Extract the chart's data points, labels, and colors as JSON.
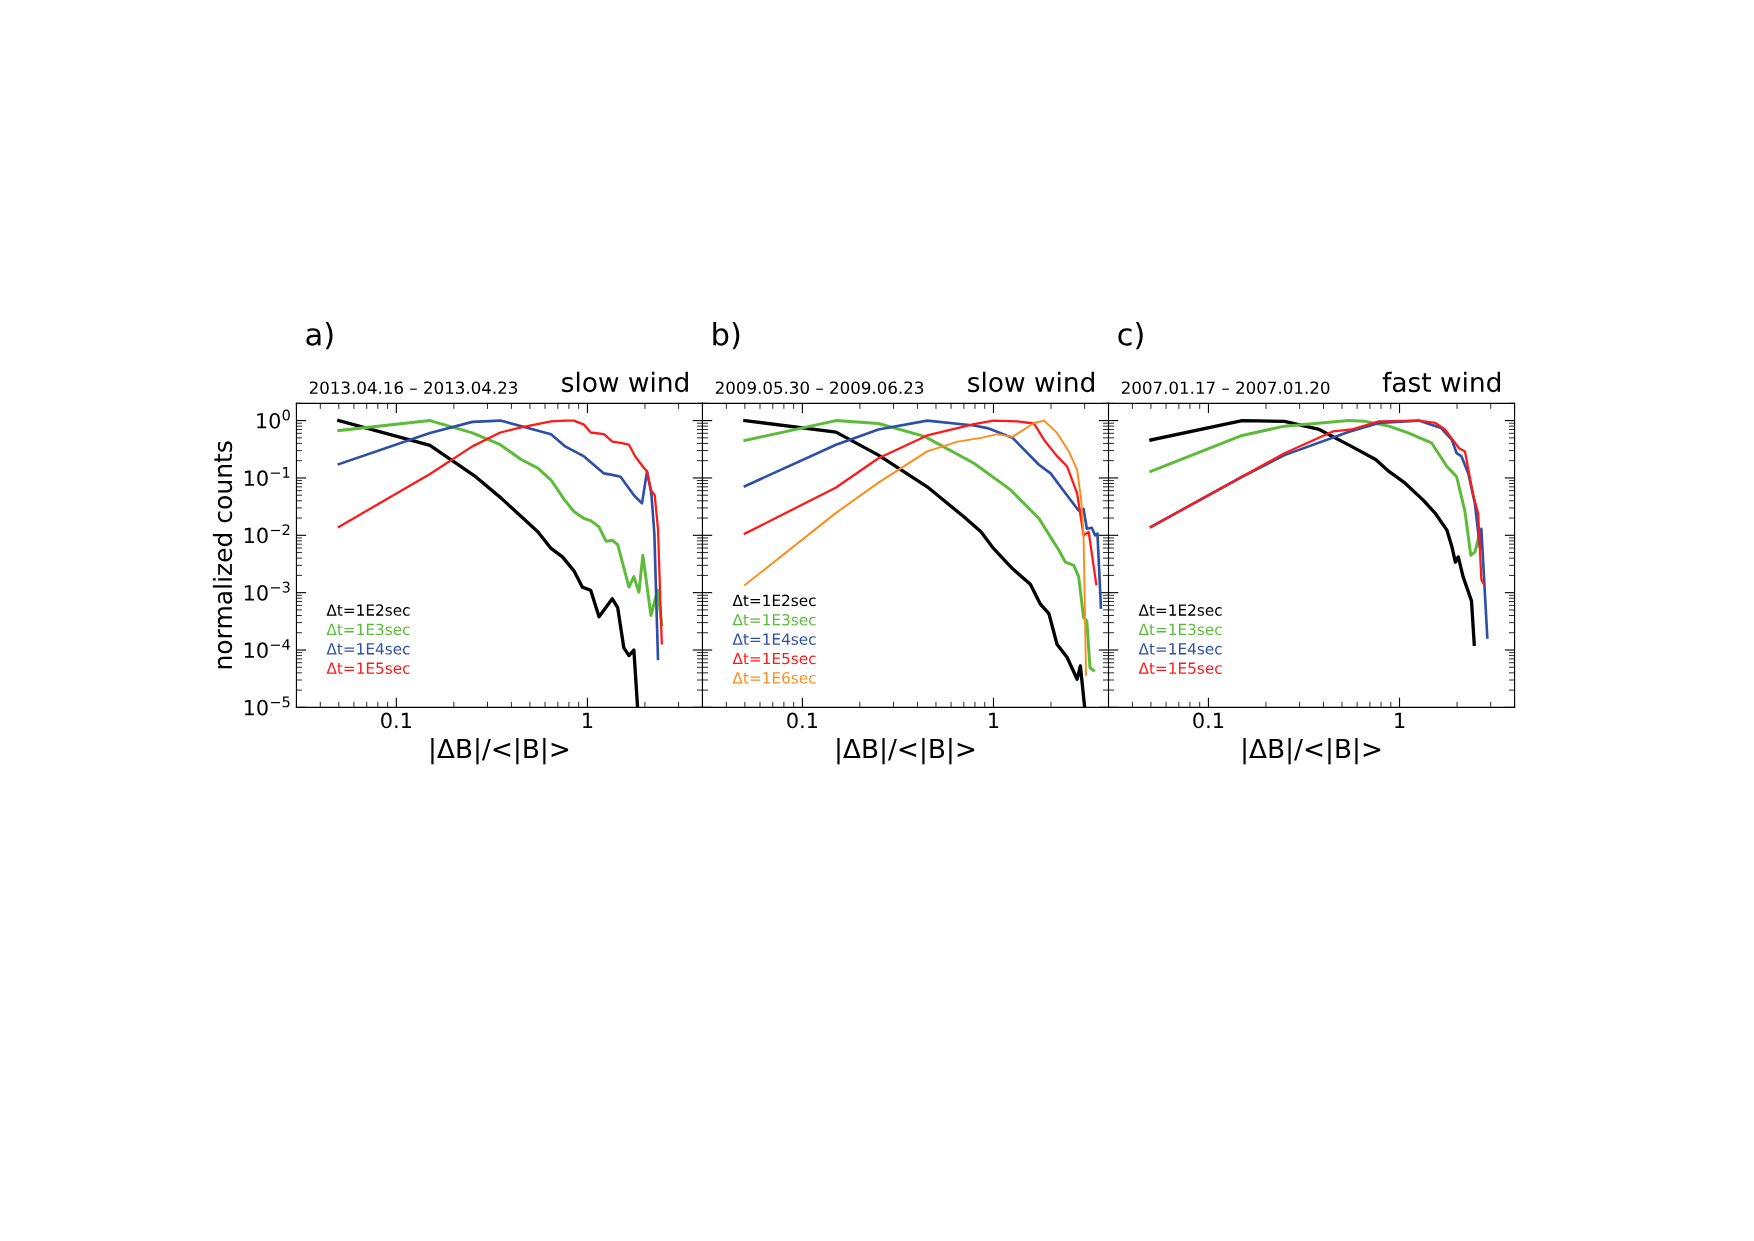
{
  "chart_data": [
    {
      "type": "line",
      "title": "slow wind",
      "subtitle": "2013.04.16 – 2013.04.23",
      "annotations": [
        "a)"
      ],
      "xlabel": "|ΔB|/<|B|>",
      "ylabel": "normalized counts",
      "log": "xy",
      "grid": false,
      "legend": "left",
      "tick_labels": "xy",
      "xlim": [
        0.03,
        4
      ],
      "xticks": [
        0.1,
        1
      ],
      "ylim": [
        1e-05,
        2
      ],
      "yticks": [
        {
          "value": 1,
          "label": "10$^{0}$"
        },
        {
          "value": 0.1,
          "label": "10$^{−1}$"
        },
        {
          "value": 0.01,
          "label": "10$^{−2}$"
        },
        {
          "value": 0.001,
          "label": "10$^{−3}$"
        },
        {
          "value": 0.0001,
          "label": "10$^{−4}$"
        },
        {
          "value": 1e-05,
          "label": "10$^{−5}$"
        }
      ],
      "series": [
        {
          "name": "Δt=1E2sec",
          "color": "#000000",
          "x": [
            0.05,
            0.15,
            0.26,
            0.355,
            0.55,
            0.645,
            0.74,
            0.85,
            0.94,
            1.04,
            1.15,
            1.35,
            1.44,
            1.55,
            1.65,
            1.75,
            1.83
          ],
          "values": [
            1,
            0.37,
            0.105,
            0.044,
            0.0115,
            0.0059,
            0.0042,
            0.0024,
            0.00125,
            0.0011,
            0.00038,
            0.00078,
            0.00055,
            0.00011,
            8e-05,
            0.0001,
            1e-05
          ]
        },
        {
          "name": "Δt=1E3sec",
          "color": "#5dbb3a",
          "x": [
            0.05,
            0.15,
            0.25,
            0.35,
            0.45,
            0.55,
            0.645,
            0.76,
            0.85,
            0.96,
            1.04,
            1.15,
            1.25,
            1.35,
            1.44,
            1.65,
            1.75,
            1.86,
            1.95,
            2.15,
            2.33,
            2.45
          ],
          "values": [
            0.67,
            1,
            0.61,
            0.38,
            0.21,
            0.148,
            0.092,
            0.041,
            0.026,
            0.0196,
            0.018,
            0.014,
            0.0079,
            0.0082,
            0.0069,
            0.00125,
            0.0019,
            0.00102,
            0.0045,
            0.0004,
            0.0011,
            0.00028
          ]
        },
        {
          "name": "Δt=1E4sec",
          "color": "#2e4fa8",
          "x": [
            0.05,
            0.15,
            0.25,
            0.35,
            0.645,
            0.76,
            0.96,
            1.22,
            1.35,
            1.49,
            1.75,
            1.93,
            2.05,
            2.16,
            2.24,
            2.34
          ],
          "values": [
            0.174,
            0.61,
            0.95,
            1,
            0.58,
            0.36,
            0.237,
            0.12,
            0.113,
            0.105,
            0.05,
            0.036,
            0.13,
            0.054,
            0.0107,
            7e-05
          ]
        },
        {
          "name": "Δt=1E5sec",
          "color": "#ff1a1a",
          "x": [
            0.05,
            0.15,
            0.25,
            0.35,
            0.45,
            0.645,
            0.76,
            0.85,
            0.96,
            1.04,
            1.22,
            1.35,
            1.49,
            1.65,
            1.78,
            1.95,
            2.05,
            2.15,
            2.25,
            2.34,
            2.45
          ],
          "values": [
            0.014,
            0.117,
            0.355,
            0.62,
            0.76,
            0.97,
            1,
            1,
            0.85,
            0.62,
            0.58,
            0.43,
            0.41,
            0.38,
            0.237,
            0.158,
            0.13,
            0.061,
            0.05,
            0.013,
            0.00013
          ]
        }
      ]
    },
    {
      "type": "line",
      "title": "slow wind",
      "subtitle": "2009.05.30 – 2009.06.23",
      "annotations": [
        "b)"
      ],
      "xlabel": "|ΔB|/<|B|>",
      "log": "xy",
      "grid": false,
      "legend": "left",
      "tick_labels": "x",
      "xlim": [
        0.03,
        4
      ],
      "xticks": [
        0.1,
        1
      ],
      "ylim": [
        1e-05,
        2
      ],
      "yticks": [
        {
          "value": 1,
          "label": null
        },
        {
          "value": 0.1,
          "label": null
        },
        {
          "value": 0.01,
          "label": null
        },
        {
          "value": 0.001,
          "label": null
        },
        {
          "value": 0.0001,
          "label": null
        },
        {
          "value": 1e-05,
          "label": null
        }
      ],
      "series": [
        {
          "name": "Δt=1E2sec",
          "color": "#000000",
          "x": [
            0.05,
            0.15,
            0.25,
            0.45,
            0.7,
            0.86,
            1.0,
            1.26,
            1.56,
            1.76,
            1.95,
            2.15,
            2.43,
            2.74,
            2.85,
            3.0
          ],
          "values": [
            1,
            0.63,
            0.25,
            0.07,
            0.021,
            0.0115,
            0.0059,
            0.0026,
            0.0014,
            0.00063,
            0.00043,
            0.000126,
            7.4e-05,
            3.1e-05,
            5.3e-05,
            1e-05
          ]
        },
        {
          "name": "Δt=1E3sec",
          "color": "#5dbb3a",
          "x": [
            0.05,
            0.15,
            0.25,
            0.435,
            0.79,
            1.23,
            1.73,
            1.99,
            2.2,
            2.38,
            2.63,
            2.79,
            2.96,
            3.08,
            3.2,
            3.34
          ],
          "values": [
            0.45,
            1,
            0.89,
            0.53,
            0.18,
            0.062,
            0.0196,
            0.0093,
            0.0055,
            0.0034,
            0.003,
            0.0019,
            0.00037,
            0.00032,
            4.9e-05,
            4.4e-05
          ]
        },
        {
          "name": "Δt=1E4sec",
          "color": "#2e4fa8",
          "x": [
            0.05,
            0.15,
            0.25,
            0.45,
            0.79,
            0.93,
            1.26,
            1.73,
            1.99,
            2.38,
            2.79,
            2.96,
            3.08,
            3.27,
            3.4,
            3.5,
            3.65
          ],
          "values": [
            0.072,
            0.38,
            0.7,
            1,
            0.82,
            0.74,
            0.5,
            0.17,
            0.12,
            0.054,
            0.027,
            0.029,
            0.013,
            0.0135,
            0.01,
            0.0107,
            0.00055
          ]
        },
        {
          "name": "Δt=1E5sec",
          "color": "#ff1a1a",
          "x": [
            0.05,
            0.15,
            0.25,
            0.45,
            0.79,
            1.0,
            1.33,
            1.63,
            1.84,
            2.15,
            2.43,
            2.74,
            2.96,
            3.15,
            3.45
          ],
          "values": [
            0.0107,
            0.068,
            0.22,
            0.55,
            0.87,
            1,
            0.97,
            0.89,
            0.46,
            0.24,
            0.158,
            0.054,
            0.01,
            0.0114,
            0.0014
          ]
        },
        {
          "name": "Δt=1E6sec",
          "color": "#ff8c1a",
          "x": [
            0.05,
            0.15,
            0.25,
            0.45,
            0.65,
            0.86,
            1.05,
            1.26,
            1.63,
            1.84,
            2.15,
            2.48,
            2.74,
            2.88,
            2.96,
            3.05
          ],
          "values": [
            0.00136,
            0.0246,
            0.083,
            0.29,
            0.43,
            0.5,
            0.58,
            0.52,
            0.91,
            1,
            0.61,
            0.29,
            0.138,
            0.041,
            0.01,
            3.7e-05
          ]
        }
      ]
    },
    {
      "type": "line",
      "title": "fast wind",
      "subtitle": "2007.01.17 – 2007.01.20",
      "annotations": [
        "c)"
      ],
      "xlabel": "|ΔB|/<|B|>",
      "log": "xy",
      "grid": false,
      "legend": "left",
      "tick_labels": "x",
      "xlim": [
        0.03,
        4
      ],
      "xticks": [
        0.1,
        1
      ],
      "ylim": [
        1e-05,
        2
      ],
      "yticks": [
        {
          "value": 1,
          "label": null
        },
        {
          "value": 0.1,
          "label": null
        },
        {
          "value": 0.01,
          "label": null
        },
        {
          "value": 0.001,
          "label": null
        },
        {
          "value": 0.0001,
          "label": null
        },
        {
          "value": 1e-05,
          "label": null
        }
      ],
      "series": [
        {
          "name": "Δt=1E2sec",
          "color": "#000000",
          "x": [
            0.05,
            0.15,
            0.25,
            0.38,
            0.56,
            0.75,
            0.88,
            1.07,
            1.33,
            1.54,
            1.77,
            1.88,
            1.96,
            2.03,
            2.15,
            2.38,
            2.46
          ],
          "values": [
            0.46,
            1,
            0.97,
            0.7,
            0.355,
            0.21,
            0.13,
            0.081,
            0.041,
            0.024,
            0.0123,
            0.0063,
            0.0034,
            0.0042,
            0.0019,
            0.00072,
            0.000126
          ]
        },
        {
          "name": "Δt=1E3sec",
          "color": "#5dbb3a",
          "x": [
            0.05,
            0.15,
            0.25,
            0.54,
            0.66,
            0.88,
            1.11,
            1.47,
            1.77,
            1.99,
            2.2,
            2.36,
            2.48,
            2.61
          ],
          "values": [
            0.13,
            0.55,
            0.8,
            1,
            0.97,
            0.8,
            0.61,
            0.41,
            0.158,
            0.105,
            0.026,
            0.0045,
            0.0051,
            0.01
          ]
        },
        {
          "name": "Δt=1E4sec",
          "color": "#2e4fa8",
          "x": [
            0.05,
            0.15,
            0.25,
            0.54,
            0.78,
            1.26,
            1.65,
            1.88,
            1.99,
            2.11,
            2.29,
            2.48,
            2.63,
            2.68,
            2.88
          ],
          "values": [
            0.014,
            0.105,
            0.25,
            0.63,
            0.91,
            1,
            0.74,
            0.46,
            0.27,
            0.237,
            0.12,
            0.036,
            0.0063,
            0.013,
            0.000166
          ]
        },
        {
          "name": "Δt=1E5sec",
          "color": "#ff1a1a",
          "x": [
            0.05,
            0.15,
            0.25,
            0.45,
            0.56,
            0.78,
            1.26,
            1.54,
            1.73,
            1.9,
            2.05,
            2.2,
            2.43,
            2.58,
            2.68,
            2.76
          ],
          "values": [
            0.014,
            0.105,
            0.27,
            0.65,
            0.7,
            0.97,
            1,
            0.91,
            0.7,
            0.46,
            0.33,
            0.29,
            0.05,
            0.024,
            0.0017,
            0.0014
          ]
        }
      ]
    }
  ]
}
